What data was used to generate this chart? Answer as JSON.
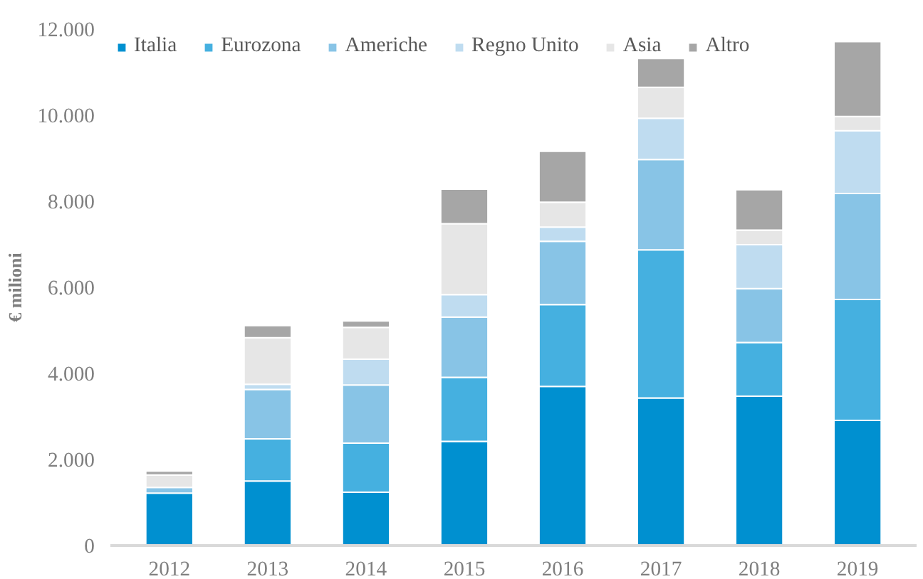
{
  "chart_data": {
    "type": "bar",
    "stacked": true,
    "ylabel": "€ milioni",
    "categories": [
      "2012",
      "2013",
      "2014",
      "2015",
      "2016",
      "2017",
      "2018",
      "2019"
    ],
    "series": [
      {
        "name": "Italia",
        "color": "#0090d0",
        "values": [
          1220,
          1500,
          1240,
          2420,
          3700,
          3430,
          3470,
          2910
        ]
      },
      {
        "name": "Eurozona",
        "color": "#45b0e0",
        "values": [
          null,
          980,
          1140,
          1490,
          1900,
          3440,
          1250,
          2810
        ]
      },
      {
        "name": "Americhe",
        "color": "#88c4e6",
        "values": [
          130,
          1150,
          1350,
          1400,
          1470,
          2100,
          1250,
          2460
        ]
      },
      {
        "name": "Regno Unito",
        "color": "#bfdcf0",
        "values": [
          null,
          120,
          600,
          520,
          330,
          960,
          1020,
          1460
        ]
      },
      {
        "name": "Asia",
        "color": "#e6e6e6",
        "values": [
          290,
          1080,
          740,
          1650,
          580,
          720,
          340,
          330
        ]
      },
      {
        "name": "Altro",
        "color": "#a6a6a6",
        "values": [
          90,
          280,
          150,
          800,
          1180,
          670,
          940,
          1740
        ]
      }
    ],
    "ylim": [
      0,
      12000
    ],
    "yticks": [
      {
        "value": 0,
        "label": "0"
      },
      {
        "value": 2000,
        "label": "2.000"
      },
      {
        "value": 4000,
        "label": "4.000"
      },
      {
        "value": 6000,
        "label": "6.000"
      },
      {
        "value": 8000,
        "label": "8.000"
      },
      {
        "value": 10000,
        "label": "10.000"
      },
      {
        "value": 12000,
        "label": "12.000"
      }
    ],
    "grid": false,
    "legend": "top left"
  }
}
